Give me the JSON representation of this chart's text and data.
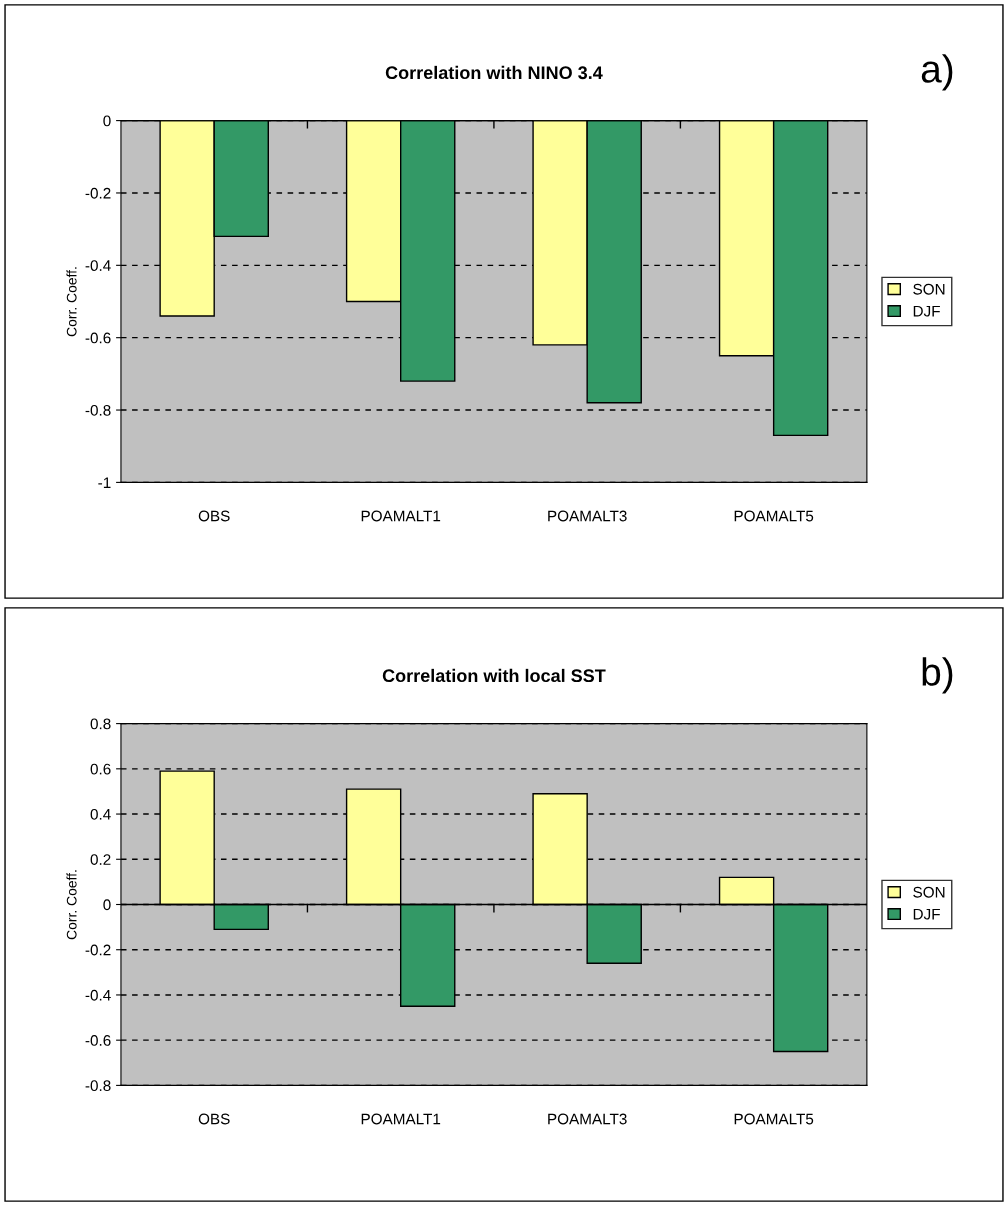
{
  "chart_data": [
    {
      "type": "bar",
      "title": "Correlation with NINO 3.4",
      "ylabel": "Corr. Coeff.",
      "annotations": [
        "a)"
      ],
      "categories": [
        "OBS",
        "POAMALT1",
        "POAMALT3",
        "POAMALT5"
      ],
      "series": [
        {
          "name": "SON",
          "color": "#ffff99",
          "values": [
            -0.54,
            -0.5,
            -0.62,
            -0.65
          ]
        },
        {
          "name": "DJF",
          "color": "#339966",
          "values": [
            -0.32,
            -0.72,
            -0.78,
            -0.87
          ]
        }
      ],
      "ylim": [
        -1,
        0
      ],
      "yticks": [
        -1,
        -0.8,
        -0.6,
        -0.4,
        -0.2,
        0
      ],
      "grid": "y",
      "legend": "right"
    },
    {
      "type": "bar",
      "title": "Correlation with local SST",
      "ylabel": "Corr. Coeff.",
      "annotations": [
        "b)"
      ],
      "categories": [
        "OBS",
        "POAMALT1",
        "POAMALT3",
        "POAMALT5"
      ],
      "series": [
        {
          "name": "SON",
          "color": "#ffff99",
          "values": [
            0.59,
            0.51,
            0.49,
            0.12
          ]
        },
        {
          "name": "DJF",
          "color": "#339966",
          "values": [
            -0.11,
            -0.45,
            -0.26,
            -0.65
          ]
        }
      ],
      "ylim": [
        -0.8,
        0.8
      ],
      "yticks": [
        -0.8,
        -0.6,
        -0.4,
        -0.2,
        0,
        0.2,
        0.4,
        0.6,
        0.8
      ],
      "grid": "y",
      "legend": "right"
    }
  ]
}
